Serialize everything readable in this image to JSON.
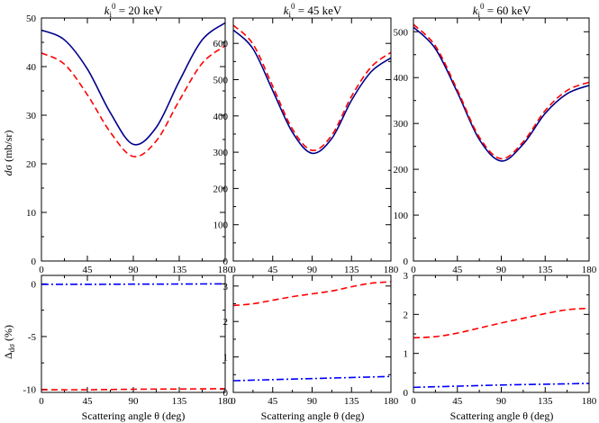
{
  "chart_data": {
    "type": "line",
    "columns": [
      {
        "title": {
          "var": "k",
          "sub": "i",
          "sup": "0",
          "text": " = 20 keV"
        },
        "top": {
          "ylim": [
            0,
            50
          ],
          "yticks": [
            0,
            10,
            20,
            30,
            40,
            50
          ],
          "ytick_labels": [
            "0",
            "10",
            "20",
            "30",
            "40",
            "50"
          ],
          "series": [
            {
              "name": "solid",
              "color": "#00008b",
              "dash": "",
              "x": [
                0,
                22.5,
                45,
                67.5,
                90,
                112.5,
                135,
                157.5,
                180
              ],
              "y": [
                47.5,
                45.5,
                39.5,
                30.5,
                24,
                27.5,
                37,
                45.5,
                49
              ]
            },
            {
              "name": "dashed",
              "color": "#ff0000",
              "dash": "7,4",
              "x": [
                0,
                22.5,
                45,
                67.5,
                90,
                112.5,
                135,
                157.5,
                180
              ],
              "y": [
                42.8,
                40.5,
                34.2,
                26.5,
                21.5,
                24.7,
                33,
                40.7,
                44.3
              ]
            }
          ]
        },
        "bottom": {
          "ylim": [
            -10.3,
            0.8
          ],
          "yticks": [
            -10,
            -5,
            0
          ],
          "ytick_labels": [
            "-10",
            "-5",
            "0"
          ],
          "series": [
            {
              "name": "dashed",
              "color": "#ff0000",
              "dash": "7,4",
              "x": [
                0,
                45,
                90,
                135,
                180
              ],
              "y": [
                -10.05,
                -10.05,
                -10,
                -9.98,
                -9.95
              ]
            },
            {
              "name": "dash-dot",
              "color": "#0000ff",
              "dash": "8,3,2,3",
              "x": [
                0,
                45,
                90,
                135,
                180
              ],
              "y": [
                -0.05,
                -0.05,
                -0.03,
                -0.02,
                0
              ]
            }
          ]
        }
      },
      {
        "title": {
          "var": "k",
          "sub": "i",
          "sup": "0",
          "text": " = 45 keV"
        },
        "top": {
          "ylim": [
            0,
            670
          ],
          "yticks": [
            0,
            100,
            200,
            300,
            400,
            500,
            600
          ],
          "ytick_labels": [
            "0",
            "100",
            "200",
            "300",
            "400",
            "500",
            "600"
          ],
          "series": [
            {
              "name": "solid",
              "color": "#00008b",
              "dash": "",
              "x": [
                0,
                22.5,
                45,
                67.5,
                90,
                112.5,
                135,
                157.5,
                180
              ],
              "y": [
                637,
                585,
                470,
                355,
                297,
                338,
                443,
                522,
                560
              ]
            },
            {
              "name": "dashed",
              "color": "#ff0000",
              "dash": "7,4",
              "x": [
                0,
                22.5,
                45,
                67.5,
                90,
                112.5,
                135,
                157.5,
                180
              ],
              "y": [
                650,
                598,
                482,
                364,
                305,
                347,
                454,
                535,
                575
              ]
            }
          ]
        },
        "bottom": {
          "ylim": [
            0,
            3.3
          ],
          "yticks": [
            0,
            1,
            2,
            3
          ],
          "ytick_labels": [
            "0",
            "1",
            "2",
            "3"
          ],
          "series": [
            {
              "name": "dashed",
              "color": "#ff0000",
              "dash": "7,4",
              "x": [
                0,
                22.5,
                45,
                67.5,
                90,
                112.5,
                135,
                157.5,
                180
              ],
              "y": [
                2.45,
                2.5,
                2.6,
                2.7,
                2.78,
                2.86,
                2.98,
                3.08,
                3.12
              ]
            },
            {
              "name": "dash-dot",
              "color": "#0000ff",
              "dash": "8,3,2,3",
              "x": [
                0,
                45,
                90,
                135,
                180
              ],
              "y": [
                0.33,
                0.36,
                0.39,
                0.42,
                0.45
              ]
            }
          ]
        }
      },
      {
        "title": {
          "var": "k",
          "sub": "i",
          "sup": "0",
          "text": " = 60 keV"
        },
        "top": {
          "ylim": [
            0,
            530
          ],
          "yticks": [
            0,
            100,
            200,
            300,
            400,
            500
          ],
          "ytick_labels": [
            "0",
            "100",
            "200",
            "300",
            "400",
            "500"
          ],
          "series": [
            {
              "name": "solid",
              "color": "#00008b",
              "dash": "",
              "x": [
                0,
                22.5,
                45,
                67.5,
                90,
                112.5,
                135,
                157.5,
                180
              ],
              "y": [
                510,
                463,
                368,
                265,
                218,
                255,
                322,
                365,
                383
              ]
            },
            {
              "name": "dashed",
              "color": "#ff0000",
              "dash": "7,4",
              "x": [
                0,
                22.5,
                45,
                67.5,
                90,
                112.5,
                135,
                157.5,
                180
              ],
              "y": [
                516,
                469,
                373,
                270,
                223,
                260,
                328,
                372,
                390
              ]
            }
          ]
        },
        "bottom": {
          "ylim": [
            0,
            3
          ],
          "yticks": [
            0,
            1,
            2,
            3
          ],
          "ytick_labels": [
            "0",
            "1",
            "2",
            "3"
          ],
          "series": [
            {
              "name": "dashed",
              "color": "#ff0000",
              "dash": "7,4",
              "x": [
                0,
                22.5,
                45,
                67.5,
                90,
                112.5,
                135,
                157.5,
                180
              ],
              "y": [
                1.4,
                1.43,
                1.52,
                1.65,
                1.78,
                1.9,
                2.02,
                2.12,
                2.16
              ]
            },
            {
              "name": "dash-dot",
              "color": "#0000ff",
              "dash": "8,3,2,3",
              "x": [
                0,
                45,
                90,
                135,
                180
              ],
              "y": [
                0.13,
                0.16,
                0.19,
                0.21,
                0.23
              ]
            }
          ]
        }
      }
    ],
    "xlim": [
      0,
      180
    ],
    "xticks": [
      0,
      45,
      90,
      135,
      180
    ],
    "xtick_labels": [
      "0",
      "45",
      "90",
      "135",
      "180"
    ],
    "xlabel": "Scattering angle θ (deg)",
    "ylabel_top": "dσ (mb/sr)",
    "ylabel_bottom": {
      "symbol": "Δ",
      "sub": "dσ",
      "text": " (%)"
    }
  }
}
